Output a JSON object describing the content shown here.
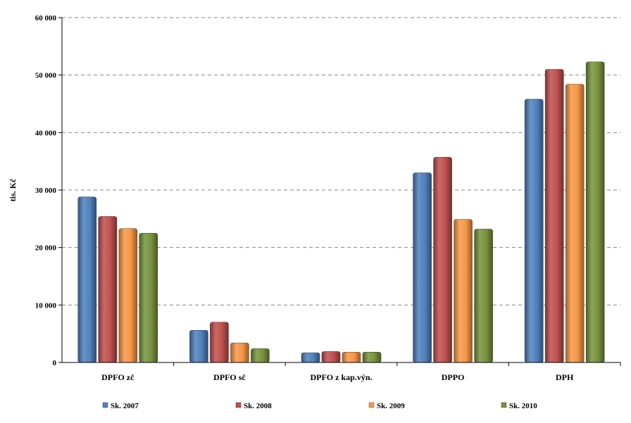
{
  "chart_data": {
    "type": "bar",
    "title": "",
    "xlabel": "",
    "ylabel": "tis. Kč",
    "ylim": [
      0,
      60000
    ],
    "yticks": [
      0,
      10000,
      20000,
      30000,
      40000,
      50000,
      60000
    ],
    "ytick_labels": [
      "0",
      "10 000",
      "20 000",
      "30 000",
      "40 000",
      "50 000",
      "60 000"
    ],
    "grid": true,
    "legend_position": "bottom",
    "categories": [
      "DPFO zč",
      "DPFO sč",
      "DPFO z kap.výn.",
      "DPPO",
      "DPH"
    ],
    "series": [
      {
        "name": "Sk. 2007",
        "color": "#4f81bd",
        "values": [
          28800,
          5600,
          1700,
          33000,
          45800
        ]
      },
      {
        "name": "Sk. 2008",
        "color": "#c0504d",
        "values": [
          25400,
          7000,
          1900,
          35700,
          51000
        ]
      },
      {
        "name": "Sk. 2009",
        "color": "#f79646",
        "values": [
          23300,
          3400,
          1800,
          24900,
          48400
        ]
      },
      {
        "name": "Sk. 2010",
        "color": "#77933c",
        "values": [
          22500,
          2400,
          1800,
          23200,
          52300
        ]
      }
    ]
  }
}
